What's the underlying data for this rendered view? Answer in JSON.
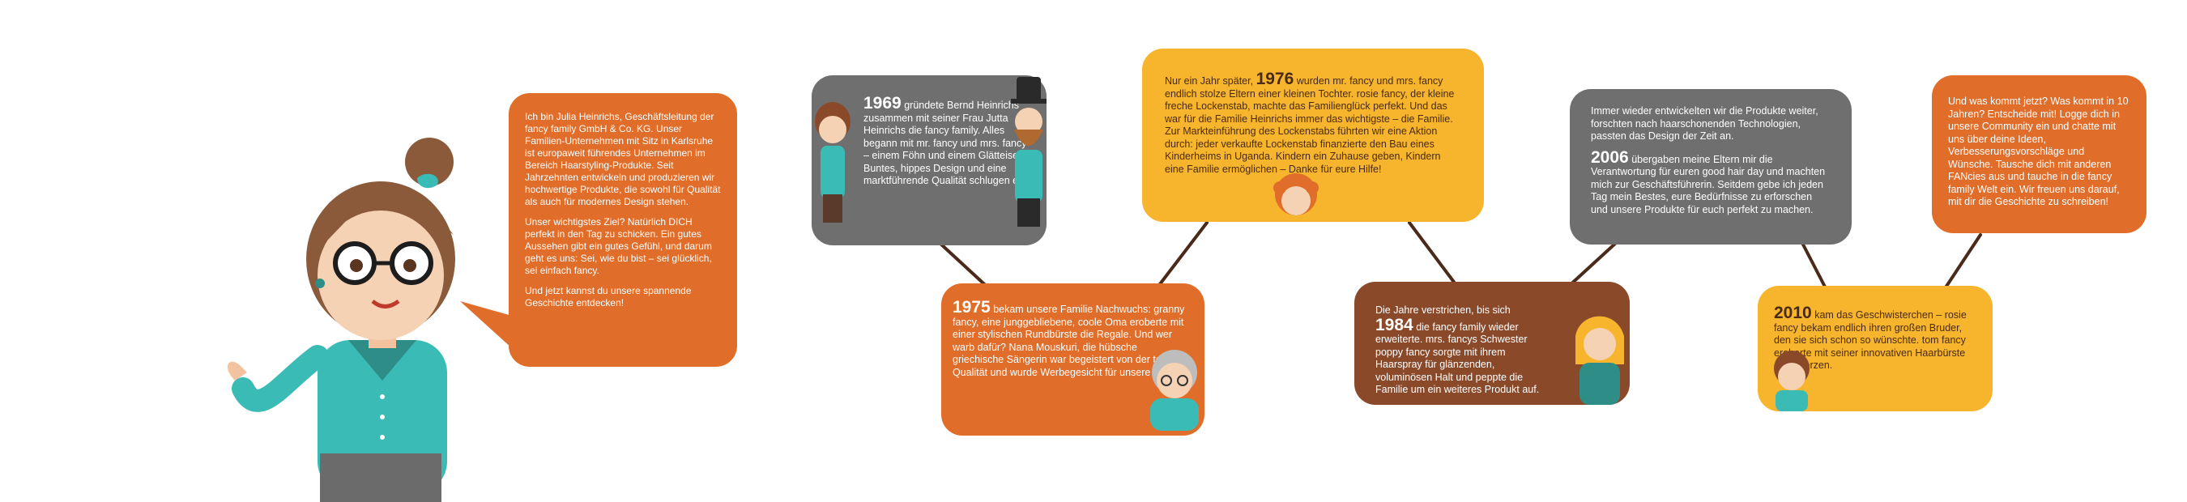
{
  "intro": {
    "p1": "Ich bin Julia Heinrichs, Geschäftsleitung der fancy family GmbH & Co. KG. Unser Familien-Unternehmen mit Sitz in Karlsruhe ist europaweit führendes Unternehmen im Bereich Haarstyling-Produkte. Seit Jahrzehnten entwickeln und produzieren wir hochwertige Produkte, die sowohl für Qualität als auch für modernes Design stehen.",
    "p2": "Unser wichtigstes Ziel? Natürlich DICH perfekt in den Tag zu schicken. Ein gutes Aussehen gibt ein gutes Gefühl, und darum geht es uns: Sei, wie du bist – sei glücklich, sei einfach fancy.",
    "p3": "Und jetzt kannst du unsere spannende Geschichte entdecken!"
  },
  "events": [
    {
      "year": "1969",
      "text": "gründete Bernd Heinrichs zusammen mit seiner Frau Jutta Heinrichs die fancy family. Alles begann mit mr. fancy und mrs. fancy – einem Föhn und einem Glätteisen. Buntes, hippes Design und eine marktführende Qualität schlugen ein."
    },
    {
      "year": "1975",
      "text": "bekam unsere Familie Nachwuchs: granny fancy, eine junggebliebene, coole Oma eroberte mit einer stylischen Rundbürste die Regale. Und wer warb dafür? Nana Mouskuri, die hübsche griechische Sängerin war begeistert von der tollen Qualität und wurde Werbegesicht für unsere Plakate."
    },
    {
      "pre": "Nur ein Jahr später,",
      "year": "1976",
      "text": "wurden mr. fancy und mrs. fancy endlich stolze Eltern einer kleinen Tochter. rosie fancy, der kleine freche Lockenstab, machte das Familienglück perfekt. Und das war für die Familie Heinrichs immer das wichtigste – die Familie. Zur Markteinführung des Lockenstabs führten wir eine Aktion durch: jeder verkaufte Lockenstab finanzierte den Bau eines Kinderheims in Uganda. Kindern ein Zuhause geben, Kindern eine Familie ermöglichen – Danke für eure Hilfe!"
    },
    {
      "pre": "Die Jahre verstrichen, bis sich",
      "year": "1984",
      "text": "die fancy family wieder erweiterte. mrs. fancys Schwester poppy fancy sorgte mit ihrem Haarspray für glänzenden, voluminösen Halt und peppte die Familie um ein weiteres Produkt auf."
    },
    {
      "intro": "Immer wieder entwickelten wir die Produkte weiter, forschten nach haarschonenden Technologien, passten das Design der Zeit an.",
      "year": "2006",
      "text": "übergaben meine Eltern mir die Verantwortung für euren good hair day und machten mich zur Geschäftsführerin. Seitdem gebe ich jeden Tag mein Bestes, eure Bedürfnisse zu erforschen und unsere Produkte für euch perfekt zu machen."
    },
    {
      "year": "2010",
      "text": "kam das Geschwisterchen – rosie fancy bekam endlich ihren großen Bruder, den sie sich schon so wünschte. tom fancy eroberte mit seiner innovativen Haarbürste eure Herzen."
    },
    {
      "text": "Und was kommt jetzt? Was kommt in 10 Jahren? Entscheide mit! Logge dich in unsere Community ein und chatte mit uns über deine Ideen, Verbesserungsvorschläge und Wünsche. Tausche dich mit anderen FANcies aus und tauche in die fancy family Welt ein. Wir freuen uns darauf, mit dir die Geschichte zu schreiben!"
    }
  ],
  "colors": {
    "orange": "#e06e2a",
    "grey": "#6f6f70",
    "yellow": "#f6b52d",
    "brown": "#8a4a2a",
    "line": "#4a2a1a",
    "teal": "#3bbbb5"
  }
}
